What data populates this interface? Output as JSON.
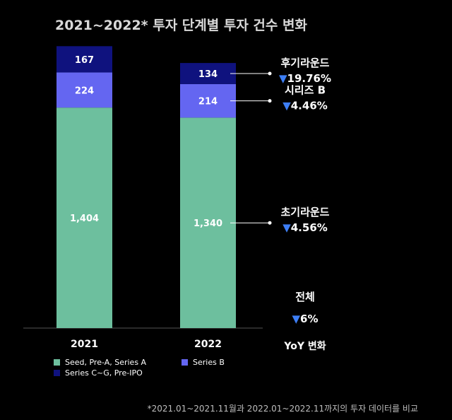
{
  "chart_data": {
    "type": "bar",
    "stacked": true,
    "title": "2021~2022* 투자 단계별 투자 건수 변화",
    "categories": [
      "2021",
      "2022"
    ],
    "series": [
      {
        "name": "Seed, Pre-A, Series A",
        "color": "#6dbf9e",
        "values": [
          1404,
          1340
        ]
      },
      {
        "name": "Series B",
        "color": "#6466f1",
        "values": [
          224,
          214
        ]
      },
      {
        "name": "Series C~G, Pre-IPO",
        "color": "#0f127e",
        "values": [
          167,
          134
        ]
      }
    ],
    "value_labels": [
      [
        "1,404",
        "1,340"
      ],
      [
        "224",
        "214"
      ],
      [
        "167",
        "134"
      ]
    ],
    "annotations": [
      {
        "series": 2,
        "label": "후기라운드",
        "change": "▼19.76%"
      },
      {
        "series": 1,
        "label": "시리즈 B",
        "change": "▼4.46%"
      },
      {
        "series": 0,
        "label": "초기라운드",
        "change": "▼4.56%"
      }
    ],
    "total": {
      "label": "전체",
      "change": "▼6%"
    },
    "yoy_label": "YoY 변화",
    "footnote": "*2021.01~2021.11월과 2022.01~2022.11까지의 투자 데이터를 비교",
    "ylim": [
      0,
      1900
    ],
    "colors": {
      "background": "#000000",
      "text": "#ffffff",
      "title": "#d9d9d9",
      "arrow": "#3d7ef5",
      "axis": "#555555",
      "footnote": "#bdbdbd"
    }
  }
}
